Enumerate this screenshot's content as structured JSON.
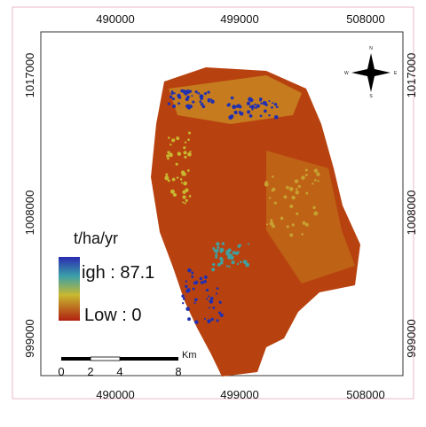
{
  "map": {
    "x_labels_top": [
      490000,
      499000,
      508000
    ],
    "x_labels_bottom": [
      490000,
      499000,
      508000
    ],
    "y_labels_left": [
      1017000,
      1008000,
      999000
    ],
    "y_labels_right": [
      1017000,
      1008000,
      999000
    ]
  },
  "legend": {
    "title": "t/ha/yr",
    "high": "igh : 87.1",
    "low": "Low : 0"
  },
  "scale_bar": {
    "labels": [
      0,
      2,
      4,
      8
    ],
    "unit": "Km"
  },
  "north_arrow": {
    "n": "N",
    "e": "E",
    "s": "S",
    "w": "W"
  }
}
